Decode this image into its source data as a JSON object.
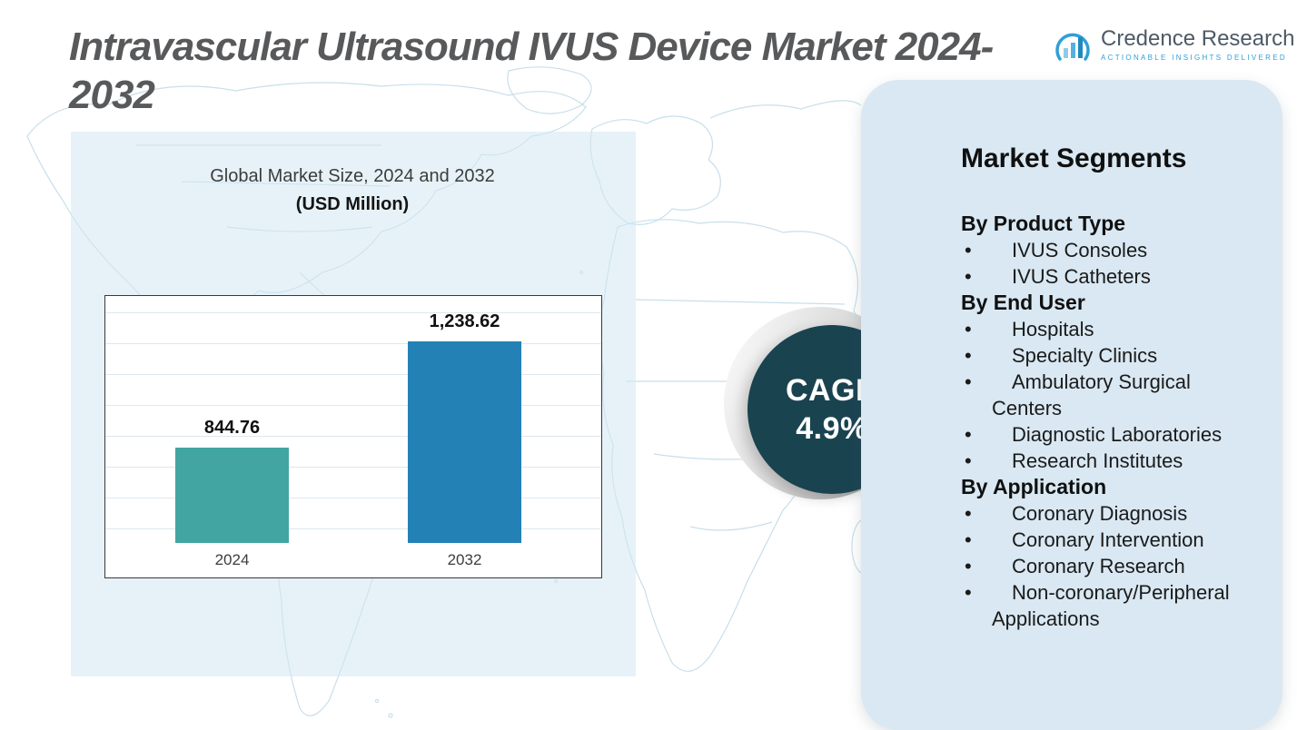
{
  "header": {
    "title": "Intravascular Ultrasound IVUS Device Market 2024-2032",
    "logo": {
      "name": "Credence Research",
      "tagline": "Actionable Insights Delivered"
    }
  },
  "chart": {
    "title_line1": "Global Market Size, 2024 and 2032",
    "title_line2": "(USD Million)"
  },
  "chart_data": {
    "type": "bar",
    "title": "Global Market Size, 2024 and 2032 (USD Million)",
    "categories": [
      "2024",
      "2032"
    ],
    "values": [
      844.76,
      1238.62
    ],
    "value_labels": [
      "844.76",
      "1,238.62"
    ],
    "colors": [
      "#43a5a2",
      "#2381b5"
    ],
    "xlabel": "",
    "ylabel": "",
    "ylim": [
      0,
      1400
    ],
    "grid": true,
    "legend": "none"
  },
  "cagr": {
    "label": "CAGR",
    "value": "4.9%"
  },
  "segments": {
    "title": "Market Segments",
    "groups": [
      {
        "label": "By Product Type",
        "items": [
          "IVUS Consoles",
          "IVUS Catheters"
        ]
      },
      {
        "label": "By End User",
        "items": [
          "Hospitals",
          "Specialty Clinics",
          "Ambulatory Surgical Centers",
          "Diagnostic Laboratories",
          "Research Institutes"
        ]
      },
      {
        "label": "By Application",
        "items": [
          "Coronary Diagnosis",
          "Coronary Intervention",
          "Coronary Research",
          "Non-coronary/Peripheral Applications"
        ]
      }
    ]
  },
  "colors": {
    "bar_2024": "#43a5a2",
    "bar_2032": "#2381b5",
    "cagr_circle": "#1a4350",
    "panel_bg": "#d9e8f2",
    "chart_backdrop": "#d4e8f3",
    "title_text": "#58595b",
    "logo_blue": "#2f9fd8"
  }
}
